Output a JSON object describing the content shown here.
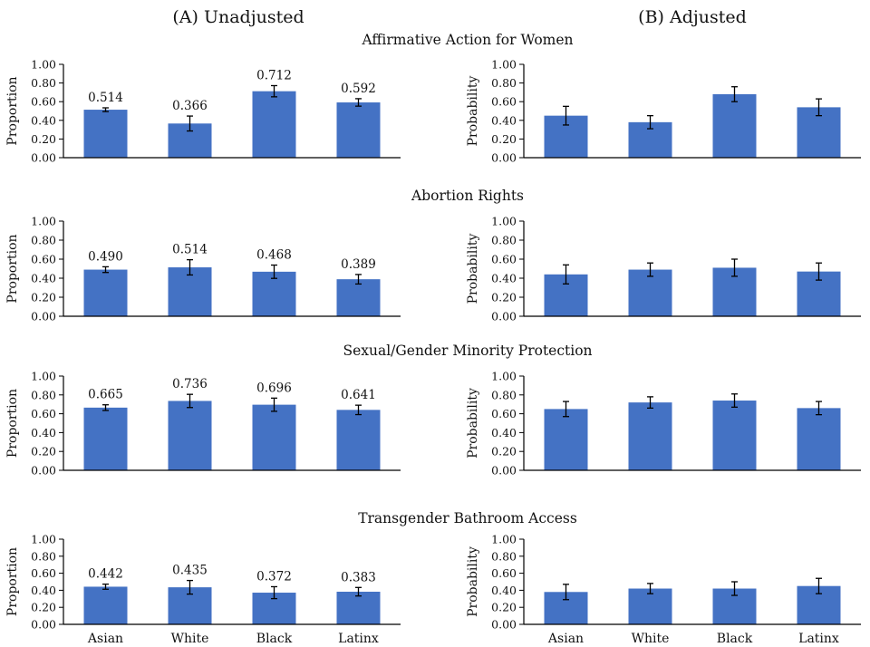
{
  "panel_titles": [
    "(A) Unadjusted",
    "(B) Adjusted"
  ],
  "row_titles": [
    "Affirmative Action for Women",
    "Abortion Rights",
    "Sexual/Gender Minority Protection",
    "Transgender Bathroom Access"
  ],
  "colors": {
    "bar": "#4472C4",
    "axis": "#000000"
  },
  "chart_data": [
    {
      "type": "bar",
      "panel": "(A) Unadjusted",
      "title": "Affirmative Action for Women",
      "ylabel": "Proportion",
      "categories": [
        "Asian",
        "White",
        "Black",
        "Latinx"
      ],
      "values": [
        0.514,
        0.366,
        0.712,
        0.592
      ],
      "error": [
        0.02,
        0.08,
        0.06,
        0.04
      ],
      "data_labels": [
        "0.514",
        "0.366",
        "0.712",
        "0.592"
      ],
      "ylim": [
        0,
        1
      ],
      "yticks": [
        "0.00",
        "0.20",
        "0.40",
        "0.60",
        "0.80",
        "1.00"
      ]
    },
    {
      "type": "bar",
      "panel": "(B) Adjusted",
      "title": "Affirmative Action for Women",
      "ylabel": "Probability",
      "categories": [
        "Asian",
        "White",
        "Black",
        "Latinx"
      ],
      "values": [
        0.45,
        0.38,
        0.68,
        0.54
      ],
      "error": [
        0.1,
        0.07,
        0.08,
        0.09
      ],
      "data_labels": [],
      "ylim": [
        0,
        1
      ],
      "yticks": [
        "0.00",
        "0.20",
        "0.40",
        "0.60",
        "0.80",
        "1.00"
      ]
    },
    {
      "type": "bar",
      "panel": "(A) Unadjusted",
      "title": "Abortion Rights",
      "ylabel": "Proportion",
      "categories": [
        "Asian",
        "White",
        "Black",
        "Latinx"
      ],
      "values": [
        0.49,
        0.514,
        0.468,
        0.389
      ],
      "error": [
        0.03,
        0.08,
        0.07,
        0.05
      ],
      "data_labels": [
        "0.490",
        "0.514",
        "0.468",
        "0.389"
      ],
      "ylim": [
        0,
        1
      ],
      "yticks": [
        "0.00",
        "0.20",
        "0.40",
        "0.60",
        "0.80",
        "1.00"
      ]
    },
    {
      "type": "bar",
      "panel": "(B) Adjusted",
      "title": "Abortion Rights",
      "ylabel": "Probability",
      "categories": [
        "Asian",
        "White",
        "Black",
        "Latinx"
      ],
      "values": [
        0.44,
        0.49,
        0.51,
        0.47
      ],
      "error": [
        0.1,
        0.07,
        0.09,
        0.09
      ],
      "data_labels": [],
      "ylim": [
        0,
        1
      ],
      "yticks": [
        "0.00",
        "0.20",
        "0.40",
        "0.60",
        "0.80",
        "1.00"
      ]
    },
    {
      "type": "bar",
      "panel": "(A) Unadjusted",
      "title": "Sexual/Gender Minority Protection",
      "ylabel": "Proportion",
      "categories": [
        "Asian",
        "White",
        "Black",
        "Latinx"
      ],
      "values": [
        0.665,
        0.736,
        0.696,
        0.641
      ],
      "error": [
        0.03,
        0.07,
        0.07,
        0.05
      ],
      "data_labels": [
        "0.665",
        "0.736",
        "0.696",
        "0.641"
      ],
      "ylim": [
        0,
        1
      ],
      "yticks": [
        "0.00",
        "0.20",
        "0.40",
        "0.60",
        "0.80",
        "1.00"
      ]
    },
    {
      "type": "bar",
      "panel": "(B) Adjusted",
      "title": "Sexual/Gender Minority Protection",
      "ylabel": "Probability",
      "categories": [
        "Asian",
        "White",
        "Black",
        "Latinx"
      ],
      "values": [
        0.65,
        0.72,
        0.74,
        0.66
      ],
      "error": [
        0.08,
        0.06,
        0.07,
        0.07
      ],
      "data_labels": [],
      "ylim": [
        0,
        1
      ],
      "yticks": [
        "0.00",
        "0.20",
        "0.40",
        "0.60",
        "0.80",
        "1.00"
      ]
    },
    {
      "type": "bar",
      "panel": "(A) Unadjusted",
      "title": "Transgender Bathroom Access",
      "ylabel": "Proportion",
      "categories": [
        "Asian",
        "White",
        "Black",
        "Latinx"
      ],
      "values": [
        0.442,
        0.435,
        0.372,
        0.383
      ],
      "error": [
        0.03,
        0.08,
        0.07,
        0.05
      ],
      "data_labels": [
        "0.442",
        "0.435",
        "0.372",
        "0.383"
      ],
      "ylim": [
        0,
        1
      ],
      "yticks": [
        "0.00",
        "0.20",
        "0.40",
        "0.60",
        "0.80",
        "1.00"
      ]
    },
    {
      "type": "bar",
      "panel": "(B) Adjusted",
      "title": "Transgender Bathroom Access",
      "ylabel": "Probability",
      "categories": [
        "Asian",
        "White",
        "Black",
        "Latinx"
      ],
      "values": [
        0.38,
        0.42,
        0.42,
        0.45
      ],
      "error": [
        0.09,
        0.06,
        0.08,
        0.09
      ],
      "data_labels": [],
      "ylim": [
        0,
        1
      ],
      "yticks": [
        "0.00",
        "0.20",
        "0.40",
        "0.60",
        "0.80",
        "1.00"
      ]
    }
  ]
}
